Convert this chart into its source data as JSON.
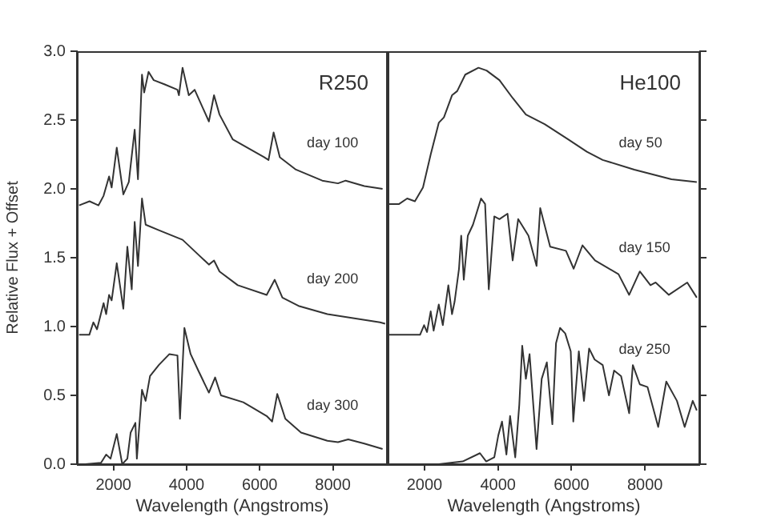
{
  "chart_data": [
    {
      "type": "line",
      "title": "R250",
      "xlabel": "Wavelength (Angstroms)",
      "ylabel": "Relative Flux + Offset",
      "xlim": [
        1000,
        9500
      ],
      "xticks": [
        2000,
        4000,
        6000,
        8000
      ],
      "ylim": [
        0,
        3
      ],
      "yticks": [
        {
          "value": 0,
          "label": "0.0"
        },
        {
          "value": 0.5,
          "label": "0.5"
        },
        {
          "value": 1,
          "label": "1.0"
        },
        {
          "value": 1.5,
          "label": "1.5"
        },
        {
          "value": 2,
          "label": "2.0"
        },
        {
          "value": 2.5,
          "label": "2.5"
        },
        {
          "value": 3,
          "label": "3.0"
        }
      ],
      "marker": "none",
      "series": [
        {
          "name": "day 100",
          "color": "#333333",
          "x": [
            1060,
            1345,
            1590,
            1730,
            1880,
            1950,
            2090,
            2270,
            2420,
            2580,
            2670,
            2780,
            2840,
            2960,
            3100,
            3390,
            3750,
            3790,
            3890,
            4060,
            4220,
            4610,
            4750,
            4900,
            5260,
            6120,
            6240,
            6380,
            6550,
            6990,
            7710,
            8140,
            8350,
            8860,
            9360
          ],
          "values": [
            1.88,
            1.91,
            1.88,
            1.95,
            2.09,
            2.01,
            2.3,
            1.96,
            2.05,
            2.43,
            2.07,
            2.83,
            2.7,
            2.85,
            2.79,
            2.76,
            2.72,
            2.68,
            2.88,
            2.68,
            2.72,
            2.49,
            2.68,
            2.54,
            2.36,
            2.23,
            2.21,
            2.41,
            2.23,
            2.14,
            2.06,
            2.04,
            2.06,
            2.02,
            2.0
          ]
        },
        {
          "name": "day 200",
          "color": "#333333",
          "x": [
            1060,
            1340,
            1450,
            1550,
            1730,
            1800,
            1880,
            1950,
            2090,
            2270,
            2380,
            2500,
            2580,
            2670,
            2780,
            2880,
            3240,
            3890,
            4250,
            4610,
            4750,
            4900,
            5400,
            6190,
            6410,
            6620,
            7060,
            7850,
            9290,
            9430
          ],
          "values": [
            0.94,
            0.94,
            1.03,
            0.98,
            1.17,
            1.09,
            1.23,
            1.19,
            1.46,
            1.13,
            1.58,
            1.27,
            1.76,
            1.44,
            1.93,
            1.74,
            1.7,
            1.63,
            1.54,
            1.45,
            1.48,
            1.4,
            1.3,
            1.23,
            1.34,
            1.21,
            1.15,
            1.09,
            1.03,
            1.02
          ]
        },
        {
          "name": "day 300",
          "color": "#333333",
          "x": [
            1230,
            1660,
            1800,
            1920,
            2090,
            2240,
            2380,
            2470,
            2600,
            2640,
            2780,
            2880,
            3000,
            3240,
            3530,
            3750,
            3820,
            3940,
            4110,
            4320,
            4610,
            4780,
            4940,
            5550,
            6190,
            6340,
            6480,
            6700,
            7130,
            7850,
            8140,
            8420,
            8860,
            9360
          ],
          "values": [
            0.0,
            0.01,
            0.07,
            0.04,
            0.22,
            0.0,
            0.04,
            0.23,
            0.3,
            0.04,
            0.54,
            0.46,
            0.64,
            0.72,
            0.8,
            0.79,
            0.33,
            0.99,
            0.8,
            0.68,
            0.52,
            0.63,
            0.5,
            0.45,
            0.35,
            0.31,
            0.51,
            0.33,
            0.23,
            0.17,
            0.16,
            0.18,
            0.15,
            0.11
          ]
        }
      ]
    },
    {
      "type": "line",
      "title": "He100",
      "xlabel": "Wavelength (Angstroms)",
      "xlim": [
        1000,
        9500
      ],
      "xticks": [
        2000,
        4000,
        6000,
        8000
      ],
      "ylim": [
        0,
        3
      ],
      "yticks": [
        {
          "value": 0,
          "label": null
        },
        {
          "value": 0.5,
          "label": null
        },
        {
          "value": 1,
          "label": null
        },
        {
          "value": 1.5,
          "label": null
        },
        {
          "value": 2,
          "label": null
        },
        {
          "value": 2.5,
          "label": null
        },
        {
          "value": 3,
          "label": null
        }
      ],
      "tick_labels": "x",
      "marker": "none",
      "series": [
        {
          "name": "day 50",
          "color": "#333333",
          "x": [
            1020,
            1310,
            1530,
            1740,
            1960,
            2170,
            2390,
            2530,
            2750,
            2890,
            3110,
            3470,
            3690,
            4040,
            4400,
            4760,
            5270,
            5910,
            6420,
            6850,
            7710,
            8720,
            9410
          ],
          "values": [
            1.89,
            1.89,
            1.93,
            1.91,
            2.01,
            2.25,
            2.48,
            2.52,
            2.68,
            2.71,
            2.83,
            2.88,
            2.86,
            2.79,
            2.66,
            2.54,
            2.47,
            2.36,
            2.27,
            2.21,
            2.14,
            2.07,
            2.05
          ]
        },
        {
          "name": "day 150",
          "color": "#333333",
          "x": [
            1020,
            1880,
            1990,
            2070,
            2170,
            2250,
            2390,
            2500,
            2650,
            2750,
            2820,
            2940,
            3000,
            3070,
            3180,
            3320,
            3540,
            3650,
            3750,
            3900,
            4040,
            4260,
            4400,
            4550,
            4830,
            5050,
            5150,
            5420,
            5850,
            6060,
            6300,
            6640,
            7280,
            7570,
            7860,
            8150,
            8290,
            8650,
            9150,
            9410
          ],
          "values": [
            0.94,
            0.94,
            1.01,
            0.96,
            1.11,
            0.97,
            1.16,
            1.01,
            1.3,
            1.09,
            1.18,
            1.42,
            1.66,
            1.34,
            1.66,
            1.74,
            1.93,
            1.89,
            1.27,
            1.8,
            1.78,
            1.82,
            1.48,
            1.78,
            1.66,
            1.44,
            1.86,
            1.58,
            1.55,
            1.42,
            1.59,
            1.48,
            1.38,
            1.23,
            1.4,
            1.3,
            1.32,
            1.23,
            1.32,
            1.21
          ]
        },
        {
          "name": "day 250",
          "color": "#333333",
          "x": [
            1020,
            2390,
            3040,
            3510,
            3680,
            3900,
            4010,
            4110,
            4230,
            4330,
            4470,
            4580,
            4660,
            4760,
            4860,
            5050,
            5190,
            5330,
            5480,
            5580,
            5690,
            5830,
            5980,
            6050,
            6200,
            6340,
            6480,
            6630,
            6850,
            7020,
            7160,
            7350,
            7570,
            7670,
            7860,
            8070,
            8360,
            8580,
            8870,
            9080,
            9300,
            9410
          ],
          "values": [
            0.0,
            0.0,
            0.02,
            0.08,
            0.02,
            0.05,
            0.21,
            0.31,
            0.07,
            0.35,
            0.05,
            0.43,
            0.86,
            0.62,
            0.8,
            0.11,
            0.62,
            0.74,
            0.29,
            0.88,
            0.99,
            0.95,
            0.82,
            0.31,
            0.82,
            0.46,
            0.84,
            0.76,
            0.72,
            0.5,
            0.68,
            0.64,
            0.37,
            0.72,
            0.58,
            0.56,
            0.27,
            0.6,
            0.46,
            0.27,
            0.46,
            0.39
          ]
        }
      ]
    }
  ]
}
